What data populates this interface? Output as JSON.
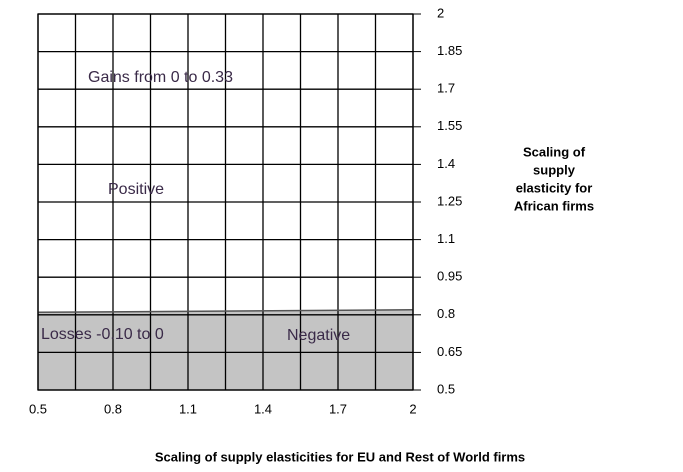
{
  "chart_data": {
    "type": "region",
    "xlabel": "Scaling of supply elasticities for EU and Rest of World firms",
    "ylabel": [
      "Scaling of",
      "supply",
      "elasticity for",
      "African firms"
    ],
    "xlim": [
      0.5,
      2
    ],
    "ylim": [
      0.5,
      2
    ],
    "xticks": [
      0.5,
      0.8,
      1.1,
      1.4,
      1.7,
      2
    ],
    "yticks": [
      2,
      1.85,
      1.7,
      1.55,
      1.4,
      1.25,
      1.1,
      0.95,
      0.8,
      0.65,
      0.5
    ],
    "xgrid": [
      0.5,
      0.65,
      0.8,
      0.95,
      1.1,
      1.25,
      1.4,
      1.55,
      1.7,
      1.85,
      2
    ],
    "grid": true,
    "boundary": {
      "x": [
        0.5,
        2
      ],
      "y": [
        0.81,
        0.82
      ]
    },
    "regions": [
      {
        "name": "Positive",
        "color": "#ffffff",
        "annotation": "Gains from 0 to 0.33"
      },
      {
        "name": "Negative",
        "color": "#c4c4c4",
        "annotation": "Losses -0.10 to 0"
      }
    ]
  }
}
